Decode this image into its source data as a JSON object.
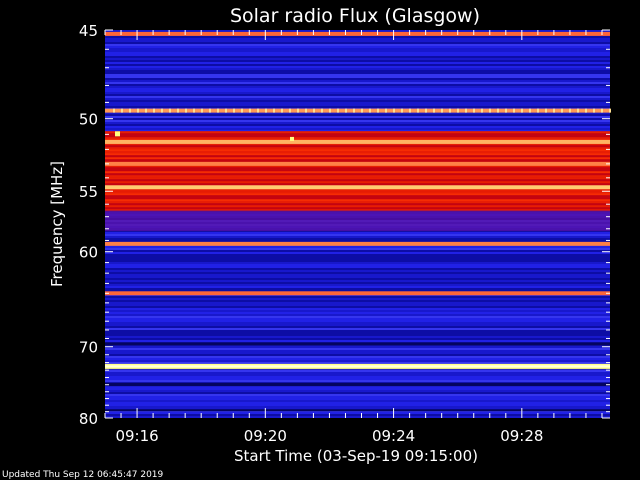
{
  "chart_data": {
    "type": "heatmap",
    "title": "Solar radio Flux (Glasgow)",
    "xlabel": "Start Time (03-Sep-19 09:15:00)",
    "ylabel": "Frequency [MHz]",
    "x_start": "09:15:00",
    "x_end": "09:30:45",
    "x_ticks": [
      "09:16",
      "09:20",
      "09:24",
      "09:28"
    ],
    "x_tick_minutes": [
      1,
      5,
      9,
      13
    ],
    "y_range": [
      45,
      80
    ],
    "y_ticks": [
      45,
      50,
      55,
      60,
      70,
      80
    ],
    "y_scale": "reciprocal",
    "colormap": "blue-red-yellow",
    "colors": {
      "low": "#0000ff",
      "mid": "#ff0000",
      "high": "#ffff80",
      "background": "#000000",
      "text": "#ffffff"
    },
    "intensity_bands": [
      {
        "freq": 45.2,
        "level": 0.7
      },
      {
        "freq": 49.5,
        "level": 0.8
      },
      {
        "freq": 51.5,
        "level": 0.85
      },
      {
        "freq": 53.0,
        "level": 0.75
      },
      {
        "freq": 54.7,
        "level": 0.9
      },
      {
        "freq": 59.3,
        "level": 0.75
      },
      {
        "freq": 64.0,
        "level": 0.7
      },
      {
        "freq": 72.5,
        "level": 1.0
      }
    ]
  },
  "footer": {
    "updated": "Updated Thu Sep 12 06:45:47 2019"
  }
}
